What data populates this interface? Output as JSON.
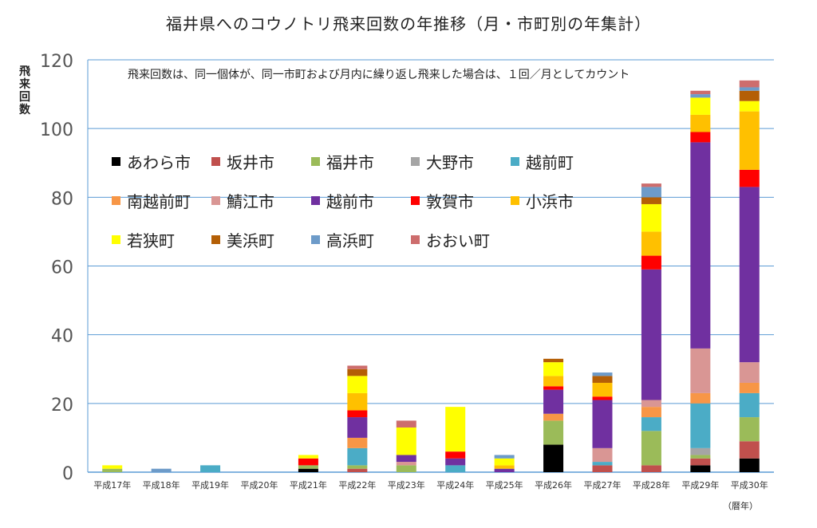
{
  "chart_data": {
    "type": "bar",
    "stacked": true,
    "title": "福井県へのコウノトリ飛来回数の年推移（月・市町別の年集計）",
    "ylabel": "飛来回数",
    "xlabel": "（暦年）",
    "note": "飛来回数は、同一個体が、同一市町および月内に繰り返し飛来した場合は、１回／月としてカウント",
    "ylim": [
      0,
      120
    ],
    "yticks": [
      0,
      20,
      40,
      60,
      80,
      100,
      120
    ],
    "grid": true,
    "legend_position": "upper-left inside plot",
    "categories": [
      "平成17年",
      "平成18年",
      "平成19年",
      "平成20年",
      "平成21年",
      "平成22年",
      "平成23年",
      "平成24年",
      "平成25年",
      "平成26年",
      "平成27年",
      "平成28年",
      "平成29年",
      "平成30年"
    ],
    "series": [
      {
        "name": "あわら市",
        "color": "#000000",
        "values": [
          0,
          0,
          0,
          0,
          1,
          0,
          0,
          0,
          0,
          8,
          0,
          0,
          2,
          4
        ]
      },
      {
        "name": "坂井市",
        "color": "#C0504D",
        "values": [
          0,
          0,
          0,
          0,
          0,
          1,
          0,
          0,
          0,
          0,
          2,
          2,
          2,
          5
        ]
      },
      {
        "name": "福井市",
        "color": "#9BBB59",
        "values": [
          1,
          0,
          0,
          0,
          1,
          1,
          2,
          0,
          0,
          7,
          0,
          10,
          1,
          7
        ]
      },
      {
        "name": "大野市",
        "color": "#A5A5A5",
        "values": [
          0,
          0,
          0,
          0,
          0,
          0,
          0,
          0,
          0,
          0,
          0,
          0,
          2,
          0
        ]
      },
      {
        "name": "越前町",
        "color": "#4BACC6",
        "values": [
          0,
          0,
          2,
          0,
          0,
          5,
          0,
          2,
          0,
          0,
          1,
          4,
          13,
          7
        ]
      },
      {
        "name": "南越前町",
        "color": "#F79646",
        "values": [
          0,
          0,
          0,
          0,
          0,
          3,
          0,
          0,
          0,
          2,
          0,
          3,
          3,
          3
        ]
      },
      {
        "name": "鯖江市",
        "color": "#D99694",
        "values": [
          0,
          0,
          0,
          0,
          0,
          0,
          1,
          0,
          0,
          0,
          4,
          2,
          13,
          6
        ]
      },
      {
        "name": "越前市",
        "color": "#7030A0",
        "values": [
          0,
          0,
          0,
          0,
          0,
          6,
          2,
          2,
          1,
          7,
          14,
          38,
          60,
          51
        ]
      },
      {
        "name": "敦賀市",
        "color": "#FF0000",
        "values": [
          0,
          0,
          0,
          0,
          2,
          2,
          0,
          2,
          0,
          1,
          1,
          4,
          3,
          5
        ]
      },
      {
        "name": "小浜市",
        "color": "#FFC000",
        "values": [
          0,
          0,
          0,
          0,
          0,
          5,
          0,
          0,
          1,
          3,
          4,
          7,
          5,
          17
        ]
      },
      {
        "name": "若狭町",
        "color": "#FFFF00",
        "values": [
          1,
          0,
          0,
          0,
          1,
          5,
          8,
          13,
          2,
          4,
          0,
          8,
          5,
          3
        ]
      },
      {
        "name": "美浜町",
        "color": "#B45F06",
        "values": [
          0,
          0,
          0,
          0,
          0,
          2,
          0,
          0,
          0,
          1,
          2,
          2,
          0,
          3
        ]
      },
      {
        "name": "高浜町",
        "color": "#6D9BC9",
        "values": [
          0,
          1,
          0,
          0,
          0,
          0,
          0,
          0,
          1,
          0,
          1,
          3,
          1,
          1
        ]
      },
      {
        "name": "おおい町",
        "color": "#CD6D6D",
        "values": [
          0,
          0,
          0,
          0,
          0,
          1,
          2,
          0,
          0,
          0,
          0,
          1,
          1,
          2
        ]
      }
    ]
  }
}
